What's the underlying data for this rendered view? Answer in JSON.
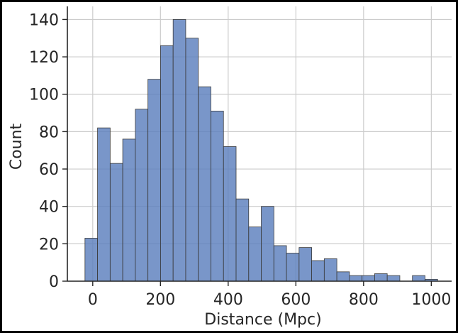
{
  "chart_data": {
    "type": "bar",
    "subtype": "histogram",
    "title": "",
    "xlabel": "Distance (Mpc)",
    "ylabel": "Count",
    "xlim": [
      -75,
      1060
    ],
    "ylim": [
      0,
      147
    ],
    "xticks": [
      0,
      200,
      400,
      600,
      800,
      1000
    ],
    "yticks": [
      0,
      20,
      40,
      60,
      80,
      100,
      120,
      140
    ],
    "grid": true,
    "bar_color": "#5b7fbd",
    "bin_width": 37.2,
    "bin_start": -23,
    "values": [
      23,
      82,
      63,
      76,
      92,
      108,
      126,
      140,
      130,
      104,
      91,
      72,
      44,
      29,
      40,
      19,
      15,
      18,
      11,
      12,
      5,
      3,
      3,
      4,
      3,
      0,
      3,
      1
    ]
  }
}
